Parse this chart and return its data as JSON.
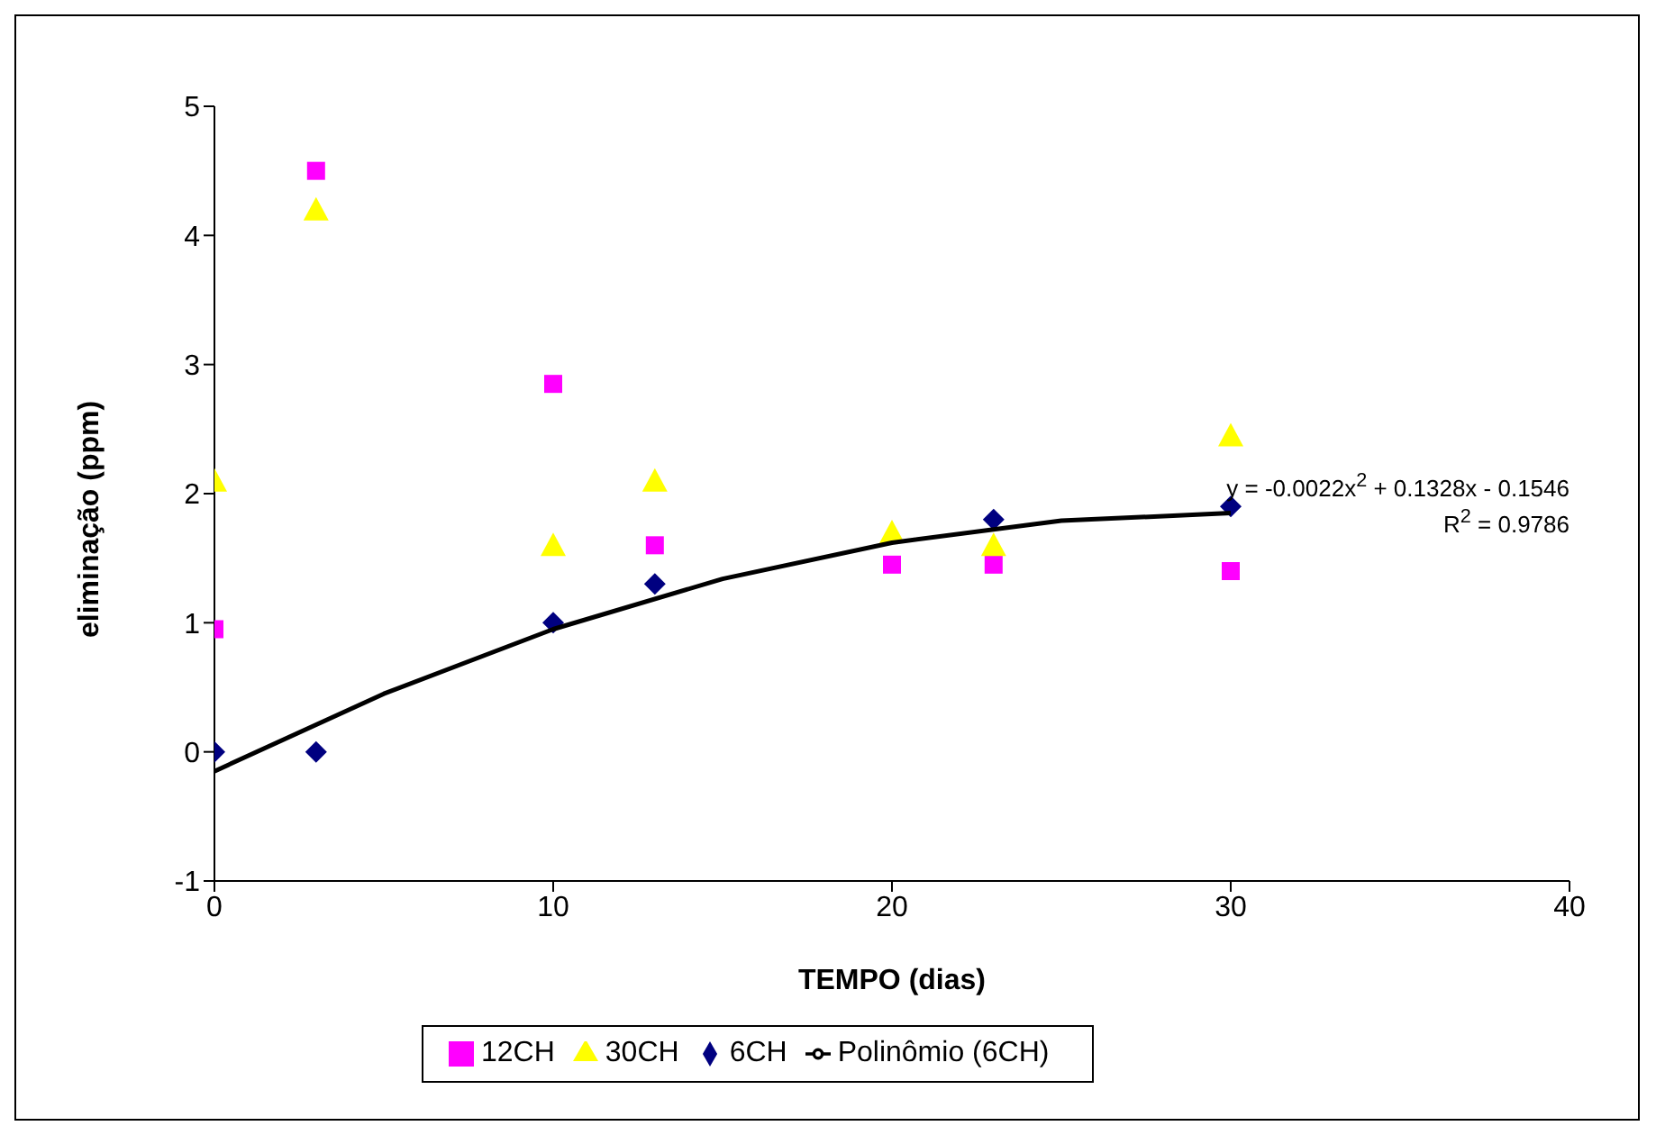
{
  "chart_data": {
    "type": "scatter",
    "xlabel": "TEMPO (dias)",
    "ylabel": "eliminação (ppm)",
    "xlim": [
      0,
      40
    ],
    "xticks": [
      0,
      10,
      20,
      30,
      40
    ],
    "ylim": [
      -1,
      5
    ],
    "yticks": [
      -1,
      0,
      1,
      2,
      3,
      4,
      5
    ],
    "grid": false,
    "legend": "bottom",
    "series": [
      {
        "name": "6CH",
        "color": "#000080",
        "marker": "diamond",
        "x": [
          0,
          3,
          10,
          13,
          23,
          30
        ],
        "values": [
          0,
          0,
          1.0,
          1.3,
          1.8,
          1.9
        ]
      },
      {
        "name": "12CH",
        "color": "#ff00ff",
        "marker": "square",
        "x": [
          0,
          3,
          10,
          13,
          20,
          23,
          30
        ],
        "values": [
          0.95,
          4.5,
          2.85,
          1.6,
          1.45,
          1.45,
          1.4
        ]
      },
      {
        "name": "30CH",
        "color": "#ffff00",
        "marker": "triangle",
        "x": [
          0,
          3,
          10,
          13,
          20,
          23,
          30
        ],
        "values": [
          2.1,
          4.2,
          1.6,
          2.1,
          1.7,
          1.6,
          2.45
        ]
      },
      {
        "name": "Polinômio (6CH)",
        "type": "line",
        "color": "#000000",
        "marker": "none",
        "x": [
          0,
          5,
          10,
          15,
          20,
          25,
          30
        ],
        "values": [
          -0.15,
          0.45,
          0.95,
          1.34,
          1.62,
          1.79,
          1.85
        ]
      }
    ],
    "annotations": [
      "y = -0.0022x$^{2}$ + 0.1328x - 0.1546",
      "R$^{2}$ = 0.9786"
    ]
  }
}
